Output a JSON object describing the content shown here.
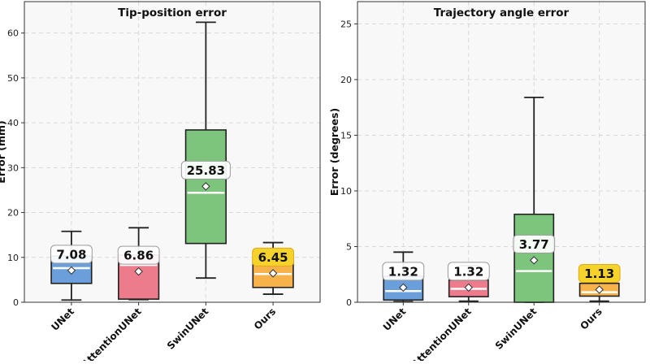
{
  "chart_data": [
    {
      "type": "box",
      "title": "Tip-position error",
      "ylabel": "Error (mm)",
      "xlabel": "",
      "ylim": [
        0,
        67
      ],
      "yticks": [
        0,
        10,
        20,
        30,
        40,
        50,
        60
      ],
      "grid": true,
      "categories": [
        "UNet",
        "AttentionUNet",
        "SwinUNet",
        "Ours"
      ],
      "boxes": [
        {
          "whisker_low": 0.5,
          "q1": 4.2,
          "median": 7.6,
          "q3": 10.3,
          "whisker_high": 15.8,
          "mean": 7.08,
          "mean_label": "7.08",
          "color": "#6a9fdc"
        },
        {
          "whisker_low": 0.6,
          "q1": 0.7,
          "median": 8.3,
          "q3": 10.5,
          "whisker_high": 16.6,
          "mean": 6.86,
          "mean_label": "6.86",
          "color": "#ec7b8c"
        },
        {
          "whisker_low": 5.4,
          "q1": 13.1,
          "median": 24.4,
          "q3": 38.4,
          "whisker_high": 62.4,
          "mean": 25.83,
          "mean_label": "25.83",
          "color": "#7dc47d"
        },
        {
          "whisker_low": 1.8,
          "q1": 3.3,
          "median": 6.3,
          "q3": 9.3,
          "whisker_high": 13.3,
          "mean": 6.45,
          "mean_label": "6.45",
          "color": "#f8b24a",
          "highlight": true
        }
      ]
    },
    {
      "type": "box",
      "title": "Trajectory angle error",
      "ylabel": "Error (degrees)",
      "xlabel": "",
      "ylim": [
        0,
        27
      ],
      "yticks": [
        0,
        5,
        10,
        15,
        20,
        25
      ],
      "grid": true,
      "categories": [
        "UNet",
        "AttentionUNet",
        "SwinUNet",
        "Ours"
      ],
      "boxes": [
        {
          "whisker_low": 0.05,
          "q1": 0.2,
          "median": 1.0,
          "q3": 2.35,
          "whisker_high": 4.5,
          "mean": 1.32,
          "mean_label": "1.32",
          "color": "#6a9fdc"
        },
        {
          "whisker_low": 0.1,
          "q1": 0.5,
          "median": 1.2,
          "q3": 2.0,
          "whisker_high": 3.3,
          "mean": 1.32,
          "mean_label": "1.32",
          "color": "#ec7b8c"
        },
        {
          "whisker_low": 0.0,
          "q1": 0.0,
          "median": 2.8,
          "q3": 7.9,
          "whisker_high": 18.4,
          "mean": 3.77,
          "mean_label": "3.77",
          "color": "#7dc47d"
        },
        {
          "whisker_low": 0.1,
          "q1": 0.55,
          "median": 0.9,
          "q3": 1.7,
          "whisker_high": 1.7,
          "mean": 1.13,
          "mean_label": "1.13",
          "color": "#f8b24a",
          "highlight": true
        }
      ]
    }
  ]
}
